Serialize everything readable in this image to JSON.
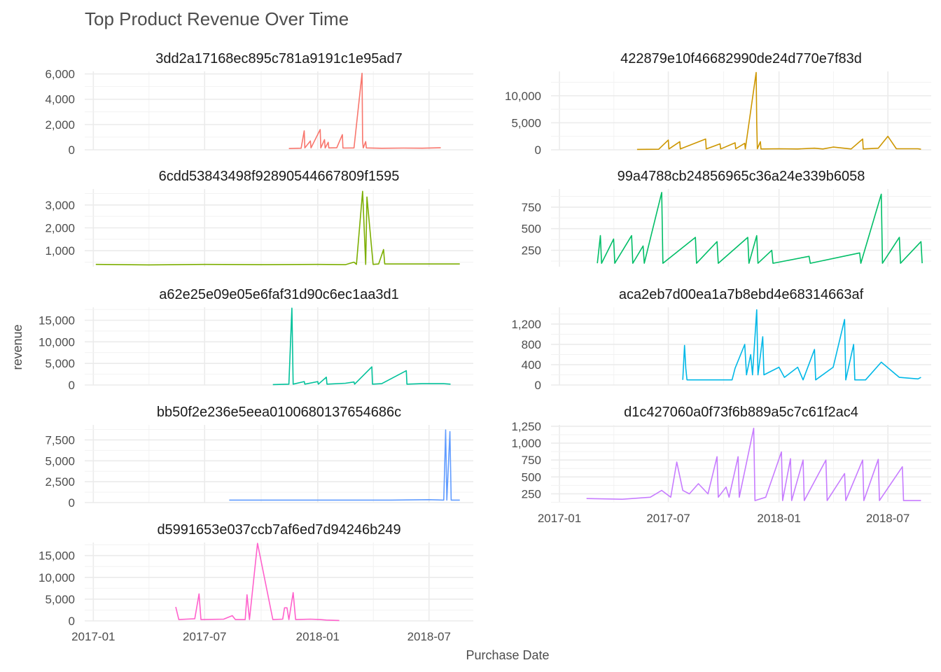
{
  "chart_data": {
    "type": "line",
    "title": "Top Product Revenue Over Time",
    "xlabel": "Purchase Date",
    "ylabel": "revenue",
    "x_ticks": [
      "2017-01",
      "2017-07",
      "2018-01",
      "2018-07"
    ],
    "grid": true,
    "legend": "none",
    "panels": [
      {
        "name": "3dd2a17168ec895c781a9191c1e95ad7",
        "color": "#F8766D",
        "ylim": [
          0,
          6200
        ],
        "y_ticks": [
          0,
          2000,
          4000,
          6000
        ],
        "y_tick_labels": [
          "0",
          "2,000",
          "4,000",
          "6,000"
        ],
        "x_axis_labels": false,
        "points": [
          [
            "2017-11-15",
            100
          ],
          [
            "2017-12-05",
            130
          ],
          [
            "2017-12-10",
            1500
          ],
          [
            "2017-12-11",
            150
          ],
          [
            "2017-12-20",
            700
          ],
          [
            "2017-12-21",
            150
          ],
          [
            "2018-01-05",
            1600
          ],
          [
            "2018-01-06",
            150
          ],
          [
            "2018-01-12",
            800
          ],
          [
            "2018-01-13",
            140
          ],
          [
            "2018-01-18",
            600
          ],
          [
            "2018-01-19",
            150
          ],
          [
            "2018-02-01",
            160
          ],
          [
            "2018-02-10",
            1200
          ],
          [
            "2018-02-11",
            140
          ],
          [
            "2018-03-01",
            150
          ],
          [
            "2018-03-14",
            6050
          ],
          [
            "2018-03-15",
            700
          ],
          [
            "2018-03-16",
            150
          ],
          [
            "2018-03-20",
            650
          ],
          [
            "2018-03-21",
            150
          ],
          [
            "2018-04-15",
            120
          ],
          [
            "2018-05-20",
            140
          ],
          [
            "2018-06-20",
            130
          ],
          [
            "2018-07-20",
            160
          ]
        ]
      },
      {
        "name": "422879e10f46682990de24d770e7f83d",
        "color": "#CD9600",
        "ylim": [
          0,
          14500
        ],
        "y_ticks": [
          0,
          5000,
          10000
        ],
        "y_tick_labels": [
          "0",
          "5,000",
          "10,000"
        ],
        "x_axis_labels": false,
        "points": [
          [
            "2017-05-10",
            80
          ],
          [
            "2017-06-15",
            100
          ],
          [
            "2017-07-01",
            1800
          ],
          [
            "2017-07-02",
            150
          ],
          [
            "2017-07-20",
            1500
          ],
          [
            "2017-07-21",
            150
          ],
          [
            "2017-09-01",
            2000
          ],
          [
            "2017-09-02",
            150
          ],
          [
            "2017-09-25",
            1100
          ],
          [
            "2017-09-26",
            150
          ],
          [
            "2017-10-20",
            1300
          ],
          [
            "2017-10-21",
            200
          ],
          [
            "2017-11-05",
            1200
          ],
          [
            "2017-11-06",
            150
          ],
          [
            "2017-11-24",
            14300
          ],
          [
            "2017-11-25",
            5000
          ],
          [
            "2017-11-26",
            200
          ],
          [
            "2017-12-01",
            1500
          ],
          [
            "2017-12-02",
            150
          ],
          [
            "2018-01-01",
            200
          ],
          [
            "2018-02-01",
            150
          ],
          [
            "2018-03-01",
            300
          ],
          [
            "2018-03-15",
            150
          ],
          [
            "2018-04-01",
            500
          ],
          [
            "2018-05-01",
            150
          ],
          [
            "2018-05-20",
            2000
          ],
          [
            "2018-05-21",
            150
          ],
          [
            "2018-06-15",
            300
          ],
          [
            "2018-07-01",
            2500
          ],
          [
            "2018-07-15",
            200
          ],
          [
            "2018-08-20",
            200
          ],
          [
            "2018-08-25",
            100
          ]
        ]
      },
      {
        "name": "6cdd53843498f92890544667809f1595",
        "color": "#7CAE00",
        "ylim": [
          300,
          3700
        ],
        "y_ticks": [
          1000,
          2000,
          3000
        ],
        "y_tick_labels": [
          "1,000",
          "2,000",
          "3,000"
        ],
        "x_axis_labels": false,
        "points": [
          [
            "2017-01-05",
            400
          ],
          [
            "2017-04-01",
            380
          ],
          [
            "2017-07-01",
            400
          ],
          [
            "2017-10-01",
            390
          ],
          [
            "2018-01-01",
            400
          ],
          [
            "2018-02-15",
            390
          ],
          [
            "2018-03-01",
            500
          ],
          [
            "2018-03-05",
            400
          ],
          [
            "2018-03-15",
            3600
          ],
          [
            "2018-03-20",
            400
          ],
          [
            "2018-03-22",
            3350
          ],
          [
            "2018-04-01",
            400
          ],
          [
            "2018-04-10",
            420
          ],
          [
            "2018-04-18",
            1050
          ],
          [
            "2018-04-20",
            420
          ],
          [
            "2018-06-01",
            420
          ],
          [
            "2018-08-20",
            420
          ]
        ]
      },
      {
        "name": "99a4788cb24856965c36a24e339b6058",
        "color": "#00BE67",
        "ylim": [
          60,
          960
        ],
        "y_ticks": [
          250,
          500,
          750
        ],
        "y_tick_labels": [
          "250",
          "500",
          "750"
        ],
        "x_axis_labels": false,
        "points": [
          [
            "2017-03-05",
            100
          ],
          [
            "2017-03-10",
            420
          ],
          [
            "2017-03-12",
            100
          ],
          [
            "2017-04-01",
            380
          ],
          [
            "2017-04-03",
            100
          ],
          [
            "2017-05-01",
            420
          ],
          [
            "2017-05-03",
            100
          ],
          [
            "2017-05-20",
            300
          ],
          [
            "2017-05-22",
            100
          ],
          [
            "2017-06-20",
            920
          ],
          [
            "2017-06-22",
            100
          ],
          [
            "2017-08-15",
            400
          ],
          [
            "2017-08-17",
            100
          ],
          [
            "2017-09-20",
            350
          ],
          [
            "2017-09-22",
            100
          ],
          [
            "2017-11-10",
            400
          ],
          [
            "2017-11-12",
            100
          ],
          [
            "2017-11-25",
            420
          ],
          [
            "2017-11-27",
            100
          ],
          [
            "2017-12-20",
            250
          ],
          [
            "2017-12-22",
            100
          ],
          [
            "2018-02-20",
            180
          ],
          [
            "2018-02-22",
            100
          ],
          [
            "2018-05-15",
            220
          ],
          [
            "2018-05-17",
            100
          ],
          [
            "2018-06-20",
            900
          ],
          [
            "2018-06-22",
            100
          ],
          [
            "2018-07-20",
            400
          ],
          [
            "2018-07-22",
            100
          ],
          [
            "2018-08-25",
            350
          ],
          [
            "2018-08-27",
            100
          ]
        ]
      },
      {
        "name": "a62e25e09e05e6faf31d90c6ec1aa3d1",
        "color": "#00C19A",
        "ylim": [
          0,
          18000
        ],
        "y_ticks": [
          0,
          5000,
          10000,
          15000
        ],
        "y_tick_labels": [
          "0",
          "5,000",
          "10,000",
          "15,000"
        ],
        "x_axis_labels": false,
        "points": [
          [
            "2017-10-20",
            100
          ],
          [
            "2017-11-15",
            200
          ],
          [
            "2017-11-20",
            17800
          ],
          [
            "2017-11-21",
            9000
          ],
          [
            "2017-11-22",
            200
          ],
          [
            "2017-12-10",
            800
          ],
          [
            "2017-12-11",
            200
          ],
          [
            "2018-01-01",
            800
          ],
          [
            "2018-01-02",
            200
          ],
          [
            "2018-01-15",
            1800
          ],
          [
            "2018-01-16",
            200
          ],
          [
            "2018-02-15",
            400
          ],
          [
            "2018-03-01",
            700
          ],
          [
            "2018-03-02",
            200
          ],
          [
            "2018-03-30",
            4200
          ],
          [
            "2018-03-31",
            200
          ],
          [
            "2018-04-15",
            300
          ],
          [
            "2018-05-25",
            3300
          ],
          [
            "2018-05-26",
            200
          ],
          [
            "2018-06-20",
            300
          ],
          [
            "2018-07-25",
            300
          ],
          [
            "2018-08-05",
            200
          ]
        ]
      },
      {
        "name": "aca2eb7d00ea1a7b8ebd4e68314663af",
        "color": "#00B8E7",
        "ylim": [
          0,
          1530
        ],
        "y_ticks": [
          0,
          400,
          800,
          1200
        ],
        "y_tick_labels": [
          "0",
          "400",
          "800",
          "1,200"
        ],
        "x_axis_labels": false,
        "points": [
          [
            "2017-07-25",
            100
          ],
          [
            "2017-07-28",
            780
          ],
          [
            "2017-07-30",
            330
          ],
          [
            "2017-08-01",
            100
          ],
          [
            "2017-10-15",
            100
          ],
          [
            "2017-10-20",
            330
          ],
          [
            "2017-11-05",
            800
          ],
          [
            "2017-11-08",
            200
          ],
          [
            "2017-11-15",
            600
          ],
          [
            "2017-11-18",
            200
          ],
          [
            "2017-11-25",
            1480
          ],
          [
            "2017-11-27",
            200
          ],
          [
            "2017-12-05",
            950
          ],
          [
            "2017-12-07",
            200
          ],
          [
            "2018-01-01",
            350
          ],
          [
            "2018-01-10",
            150
          ],
          [
            "2018-02-01",
            350
          ],
          [
            "2018-02-10",
            100
          ],
          [
            "2018-03-01",
            700
          ],
          [
            "2018-03-03",
            100
          ],
          [
            "2018-04-01",
            350
          ],
          [
            "2018-04-20",
            1290
          ],
          [
            "2018-04-22",
            100
          ],
          [
            "2018-05-05",
            800
          ],
          [
            "2018-05-07",
            100
          ],
          [
            "2018-05-25",
            100
          ],
          [
            "2018-06-20",
            450
          ],
          [
            "2018-07-20",
            150
          ],
          [
            "2018-08-20",
            120
          ],
          [
            "2018-08-25",
            150
          ]
        ]
      },
      {
        "name": "bb50f2e236e5eea0100680137654686c",
        "color": "#619CFF",
        "ylim": [
          0,
          9300
        ],
        "y_ticks": [
          0,
          2500,
          5000,
          7500
        ],
        "y_tick_labels": [
          "0",
          "2,500",
          "5,000",
          "7,500"
        ],
        "x_axis_labels": false,
        "points": [
          [
            "2017-08-10",
            300
          ],
          [
            "2018-01-01",
            300
          ],
          [
            "2018-05-01",
            300
          ],
          [
            "2018-07-01",
            350
          ],
          [
            "2018-07-25",
            300
          ],
          [
            "2018-07-28",
            8700
          ],
          [
            "2018-07-30",
            300
          ],
          [
            "2018-08-04",
            8500
          ],
          [
            "2018-08-06",
            300
          ],
          [
            "2018-08-20",
            300
          ]
        ]
      },
      {
        "name": "d1c427060a0f73f6b889a5c7c61f2ac4",
        "color": "#C77CFF",
        "ylim": [
          120,
          1270
        ],
        "y_ticks": [
          250,
          500,
          750,
          1000,
          1250
        ],
        "y_tick_labels": [
          "250",
          "500",
          "750",
          "1,000",
          "1,250"
        ],
        "x_axis_labels": true,
        "points": [
          [
            "2017-02-15",
            180
          ],
          [
            "2017-04-15",
            170
          ],
          [
            "2017-06-01",
            200
          ],
          [
            "2017-06-20",
            300
          ],
          [
            "2017-07-05",
            200
          ],
          [
            "2017-07-15",
            720
          ],
          [
            "2017-07-25",
            300
          ],
          [
            "2017-08-05",
            250
          ],
          [
            "2017-08-20",
            400
          ],
          [
            "2017-09-05",
            250
          ],
          [
            "2017-09-20",
            800
          ],
          [
            "2017-09-22",
            200
          ],
          [
            "2017-10-05",
            350
          ],
          [
            "2017-10-10",
            200
          ],
          [
            "2017-10-25",
            800
          ],
          [
            "2017-10-27",
            200
          ],
          [
            "2017-11-20",
            1220
          ],
          [
            "2017-11-22",
            150
          ],
          [
            "2017-12-10",
            200
          ],
          [
            "2018-01-05",
            870
          ],
          [
            "2018-01-07",
            150
          ],
          [
            "2018-01-20",
            770
          ],
          [
            "2018-01-22",
            150
          ],
          [
            "2018-02-10",
            750
          ],
          [
            "2018-02-12",
            150
          ],
          [
            "2018-03-20",
            750
          ],
          [
            "2018-03-22",
            150
          ],
          [
            "2018-04-20",
            550
          ],
          [
            "2018-04-22",
            150
          ],
          [
            "2018-05-20",
            750
          ],
          [
            "2018-05-22",
            150
          ],
          [
            "2018-06-15",
            760
          ],
          [
            "2018-06-17",
            150
          ],
          [
            "2018-07-25",
            650
          ],
          [
            "2018-07-27",
            150
          ],
          [
            "2018-08-25",
            150
          ]
        ]
      },
      {
        "name": "d5991653e037ccb7af6ed7d94246b249",
        "color": "#FF61CC",
        "ylim": [
          0,
          18000
        ],
        "y_ticks": [
          0,
          5000,
          10000,
          15000
        ],
        "y_tick_labels": [
          "0",
          "5,000",
          "10,000",
          "15,000"
        ],
        "x_axis_labels": true,
        "points": [
          [
            "2017-05-15",
            3200
          ],
          [
            "2017-05-20",
            300
          ],
          [
            "2017-06-01",
            400
          ],
          [
            "2017-06-15",
            500
          ],
          [
            "2017-06-22",
            6200
          ],
          [
            "2017-06-25",
            300
          ],
          [
            "2017-08-01",
            400
          ],
          [
            "2017-08-15",
            1200
          ],
          [
            "2017-08-20",
            300
          ],
          [
            "2017-09-05",
            300
          ],
          [
            "2017-09-08",
            6000
          ],
          [
            "2017-09-12",
            300
          ],
          [
            "2017-09-25",
            17800
          ],
          [
            "2017-10-20",
            300
          ],
          [
            "2017-11-05",
            400
          ],
          [
            "2017-11-08",
            3000
          ],
          [
            "2017-11-12",
            3000
          ],
          [
            "2017-11-15",
            300
          ],
          [
            "2017-11-22",
            6500
          ],
          [
            "2017-11-26",
            300
          ],
          [
            "2017-12-20",
            400
          ],
          [
            "2018-01-05",
            300
          ],
          [
            "2018-01-15",
            200
          ],
          [
            "2018-02-05",
            100
          ]
        ]
      }
    ]
  }
}
